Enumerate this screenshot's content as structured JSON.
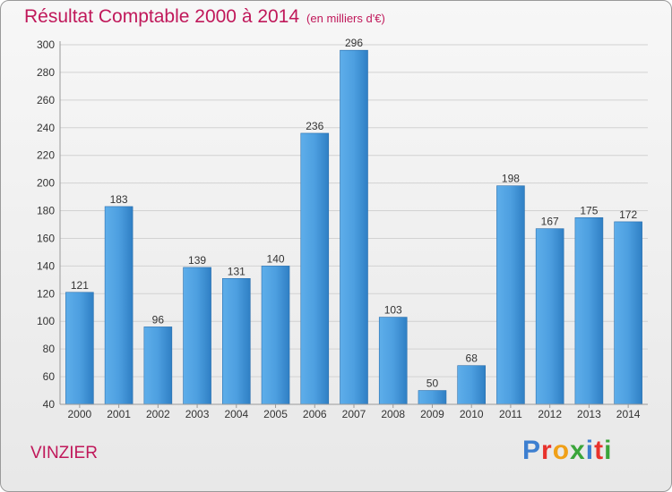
{
  "title": "Résultat Comptable 2000 à 2014",
  "unit": "(en milliers d'€)",
  "commune": "VINZIER",
  "logo": {
    "text": "Proxiti",
    "letters": [
      "P",
      "r",
      "o",
      "x",
      "i",
      "t",
      "i"
    ]
  },
  "colors": {
    "bar": "#3d8fd4",
    "bar_light": "#5eaeea",
    "bar_dark": "#2b74b8",
    "title": "#c0185a",
    "grid": "#d2d2d2"
  },
  "chart_data": {
    "type": "bar",
    "title": "Résultat Comptable 2000 à 2014",
    "categories": [
      "2000",
      "2001",
      "2002",
      "2003",
      "2004",
      "2005",
      "2006",
      "2007",
      "2008",
      "2009",
      "2010",
      "2011",
      "2012",
      "2013",
      "2014"
    ],
    "values": [
      121,
      183,
      96,
      139,
      131,
      140,
      236,
      296,
      103,
      50,
      68,
      198,
      167,
      175,
      172
    ],
    "ylim": [
      40,
      300
    ],
    "yticks": [
      40,
      60,
      80,
      100,
      120,
      140,
      160,
      180,
      200,
      220,
      240,
      260,
      280,
      300
    ],
    "grid": true
  }
}
